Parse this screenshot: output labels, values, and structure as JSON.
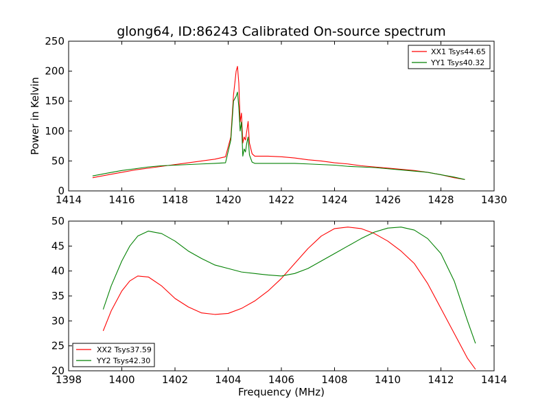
{
  "chart_data": [
    {
      "type": "line",
      "title": "glong64, ID:86243 Calibrated On-source spectrum",
      "xlabel": "",
      "ylabel": "Power in Kelvin",
      "xlim": [
        1414,
        1430
      ],
      "ylim": [
        0,
        250
      ],
      "xticks": [
        "1414",
        "1416",
        "1418",
        "1420",
        "1422",
        "1424",
        "1426",
        "1428",
        "1430"
      ],
      "yticks": [
        "0",
        "50",
        "100",
        "150",
        "200",
        "250"
      ],
      "grid": false,
      "legend_position": "top-right",
      "series": [
        {
          "name": "XX1 Tsys44.65",
          "color": "#ff0000",
          "x": [
            1414.9,
            1415.5,
            1416.0,
            1416.5,
            1417.0,
            1417.5,
            1418.0,
            1418.5,
            1419.0,
            1419.5,
            1419.9,
            1420.1,
            1420.2,
            1420.3,
            1420.35,
            1420.4,
            1420.45,
            1420.5,
            1420.55,
            1420.6,
            1420.65,
            1420.7,
            1420.75,
            1420.8,
            1420.9,
            1421.0,
            1421.5,
            1422.0,
            1422.5,
            1423.0,
            1423.5,
            1424.0,
            1424.5,
            1425.0,
            1425.5,
            1426.0,
            1426.5,
            1427.0,
            1427.5,
            1428.0,
            1428.5,
            1428.9
          ],
          "y": [
            22,
            27,
            31,
            35,
            38,
            41,
            44,
            47,
            50,
            53,
            57,
            90,
            160,
            200,
            208,
            180,
            115,
            130,
            80,
            90,
            85,
            100,
            116,
            80,
            62,
            58,
            58,
            57,
            55,
            52,
            50,
            47,
            45,
            42,
            40,
            38,
            36,
            34,
            31,
            27,
            22,
            19
          ]
        },
        {
          "name": "YY1 Tsys40.32",
          "color": "#008000",
          "x": [
            1414.9,
            1415.5,
            1416.0,
            1416.5,
            1417.0,
            1417.5,
            1418.0,
            1418.5,
            1419.0,
            1419.5,
            1419.9,
            1420.1,
            1420.2,
            1420.3,
            1420.35,
            1420.4,
            1420.45,
            1420.5,
            1420.55,
            1420.6,
            1420.65,
            1420.7,
            1420.75,
            1420.8,
            1420.9,
            1421.0,
            1421.5,
            1422.0,
            1422.5,
            1423.0,
            1423.5,
            1424.0,
            1424.5,
            1425.0,
            1425.5,
            1426.0,
            1426.5,
            1427.0,
            1427.5,
            1428.0,
            1428.5,
            1428.9
          ],
          "y": [
            25,
            30,
            34,
            37,
            40,
            42,
            43,
            44,
            45,
            46,
            47,
            85,
            150,
            158,
            165,
            140,
            100,
            115,
            58,
            70,
            65,
            80,
            90,
            60,
            48,
            46,
            46,
            46,
            46,
            45,
            44,
            43,
            41,
            40,
            39,
            37,
            35,
            33,
            31,
            27,
            23,
            19
          ]
        }
      ]
    },
    {
      "type": "line",
      "title": "",
      "xlabel": "Frequency (MHz)",
      "ylabel": "",
      "xlim": [
        1398,
        1414
      ],
      "ylim": [
        20,
        50
      ],
      "xticks": [
        "1398",
        "1400",
        "1402",
        "1404",
        "1406",
        "1408",
        "1410",
        "1412",
        "1414"
      ],
      "yticks": [
        "20",
        "25",
        "30",
        "35",
        "40",
        "45",
        "50"
      ],
      "grid": false,
      "legend_position": "bottom-left",
      "series": [
        {
          "name": "XX2 Tsys37.59",
          "color": "#ff0000",
          "x": [
            1399.3,
            1399.6,
            1400.0,
            1400.3,
            1400.6,
            1401.0,
            1401.5,
            1402.0,
            1402.5,
            1403.0,
            1403.5,
            1404.0,
            1404.5,
            1405.0,
            1405.5,
            1406.0,
            1406.5,
            1407.0,
            1407.5,
            1408.0,
            1408.5,
            1409.0,
            1409.5,
            1410.0,
            1410.5,
            1411.0,
            1411.5,
            1412.0,
            1412.5,
            1413.0,
            1413.3
          ],
          "y": [
            28.0,
            32.0,
            36.0,
            38.0,
            39.0,
            38.8,
            37.0,
            34.5,
            32.8,
            31.6,
            31.3,
            31.5,
            32.5,
            34.0,
            36.0,
            38.5,
            41.5,
            44.5,
            47.0,
            48.5,
            48.8,
            48.5,
            47.5,
            46.0,
            44.0,
            41.5,
            37.5,
            32.5,
            27.5,
            22.5,
            20.3
          ]
        },
        {
          "name": "YY2 Tsys42.30",
          "color": "#008000",
          "x": [
            1399.3,
            1399.6,
            1400.0,
            1400.3,
            1400.6,
            1401.0,
            1401.5,
            1402.0,
            1402.5,
            1403.0,
            1403.5,
            1404.0,
            1404.5,
            1405.0,
            1405.5,
            1406.0,
            1406.5,
            1407.0,
            1407.5,
            1408.0,
            1408.5,
            1409.0,
            1409.5,
            1410.0,
            1410.5,
            1411.0,
            1411.5,
            1412.0,
            1412.5,
            1413.0,
            1413.3
          ],
          "y": [
            32.3,
            37.0,
            42.0,
            45.0,
            47.0,
            48.0,
            47.5,
            46.0,
            44.0,
            42.5,
            41.2,
            40.5,
            39.8,
            39.5,
            39.2,
            39.0,
            39.5,
            40.5,
            42.0,
            43.5,
            45.0,
            46.5,
            47.8,
            48.6,
            48.8,
            48.2,
            46.5,
            43.5,
            38.0,
            30.0,
            25.5
          ]
        }
      ]
    }
  ]
}
